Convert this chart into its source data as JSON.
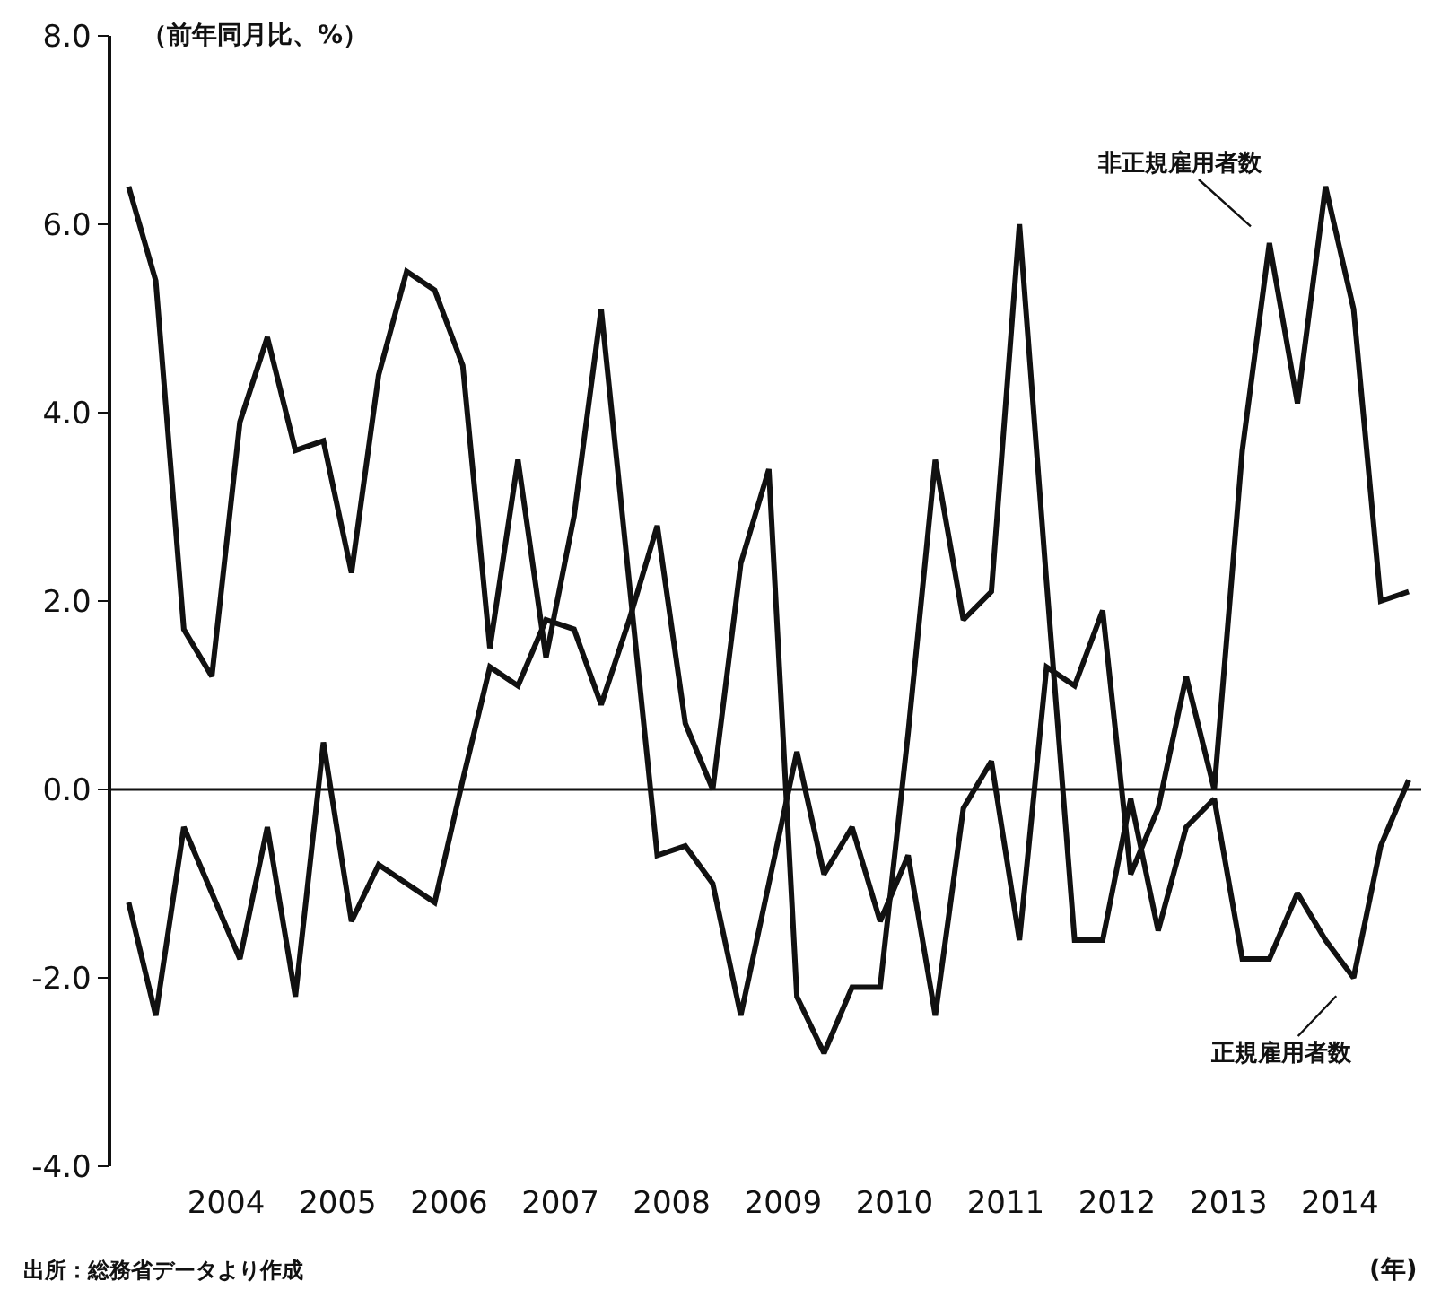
{
  "chart_data": {
    "type": "line",
    "ylabel": "（前年同月比、%）",
    "xlabel": "(年)",
    "annotations": [
      "出所：総務省データより作成"
    ],
    "x": [
      "2003-02-15",
      "2003-05-15",
      "2003-08-15",
      "2003-11-15",
      "2004-02-15",
      "2004-05-15",
      "2004-08-15",
      "2004-11-15",
      "2005-02-15",
      "2005-05-15",
      "2005-08-15",
      "2005-11-15",
      "2006-02-15",
      "2006-05-15",
      "2006-08-15",
      "2006-11-15",
      "2007-02-15",
      "2007-05-15",
      "2007-08-15",
      "2007-11-15",
      "2008-02-15",
      "2008-05-15",
      "2008-08-15",
      "2008-11-15",
      "2009-02-15",
      "2009-05-15",
      "2009-08-15",
      "2009-11-15",
      "2010-02-15",
      "2010-05-15",
      "2010-08-15",
      "2010-11-15",
      "2011-02-15",
      "2011-05-15",
      "2011-08-15",
      "2011-11-15",
      "2012-02-15",
      "2012-05-15",
      "2012-08-15",
      "2012-11-15",
      "2013-02-15",
      "2013-05-15",
      "2013-08-15",
      "2013-11-15",
      "2014-02-15",
      "2014-05-15",
      "2014-08-15"
    ],
    "series": [
      {
        "name": "非正規雇用者数",
        "color": "#111111",
        "values": [
          6.4,
          5.4,
          1.7,
          1.2,
          3.9,
          4.8,
          3.6,
          3.7,
          2.3,
          4.4,
          5.5,
          5.3,
          4.5,
          1.5,
          3.5,
          1.4,
          2.9,
          5.1,
          2.2,
          -0.7,
          -0.6,
          -1.0,
          -2.4,
          -1.0,
          0.4,
          -0.9,
          -0.4,
          -1.4,
          -0.7,
          -2.4,
          -0.2,
          0.3,
          -1.6,
          1.3,
          1.1,
          1.9,
          -0.9,
          -0.2,
          1.2,
          0.0,
          3.6,
          5.8,
          4.1,
          6.4,
          5.1,
          2.0,
          2.1
        ]
      },
      {
        "name": "正規雇用者数",
        "color": "#111111",
        "values": [
          -1.2,
          -2.4,
          -0.4,
          -1.1,
          -1.8,
          -0.4,
          -2.2,
          0.5,
          -1.4,
          -0.8,
          -1.0,
          -1.2,
          0.1,
          1.3,
          1.1,
          1.8,
          1.7,
          0.9,
          1.8,
          2.8,
          0.7,
          0.0,
          2.4,
          3.4,
          -2.2,
          -2.8,
          -2.1,
          -2.1,
          0.6,
          3.5,
          1.8,
          2.1,
          6.0,
          2.2,
          -1.6,
          -1.6,
          -0.1,
          -1.5,
          -0.4,
          -0.1,
          -1.8,
          -1.8,
          -1.1,
          -1.6,
          -2.0,
          -0.6,
          0.1
        ]
      }
    ],
    "xlim": [
      "2002-12-20",
      "2014-09-25"
    ],
    "xticks": [
      {
        "value": "2004",
        "label": "2004"
      },
      {
        "value": "2005",
        "label": "2005"
      },
      {
        "value": "2006",
        "label": "2006"
      },
      {
        "value": "2007",
        "label": "2007"
      },
      {
        "value": "2008",
        "label": "2008"
      },
      {
        "value": "2009",
        "label": "2009"
      },
      {
        "value": "2010",
        "label": "2010"
      },
      {
        "value": "2011",
        "label": "2011"
      },
      {
        "value": "2012",
        "label": "2012"
      },
      {
        "value": "2013",
        "label": "2013"
      },
      {
        "value": "2014",
        "label": "2014"
      }
    ],
    "ylim": [
      -4,
      8
    ],
    "yticks": [
      {
        "value": -4,
        "label": "-4.0"
      },
      {
        "value": -2,
        "label": "-2.0"
      },
      {
        "value": 0,
        "label": "0.0"
      },
      {
        "value": 2,
        "label": "2.0"
      },
      {
        "value": 4,
        "label": "4.0"
      },
      {
        "value": 6,
        "label": "6.0"
      },
      {
        "value": 8,
        "label": "8.0"
      }
    ],
    "ref_lines": [
      {
        "axis": "y",
        "value": 0,
        "color": "#111111"
      }
    ],
    "legend": false,
    "marker": "none",
    "line_style": "solid"
  }
}
